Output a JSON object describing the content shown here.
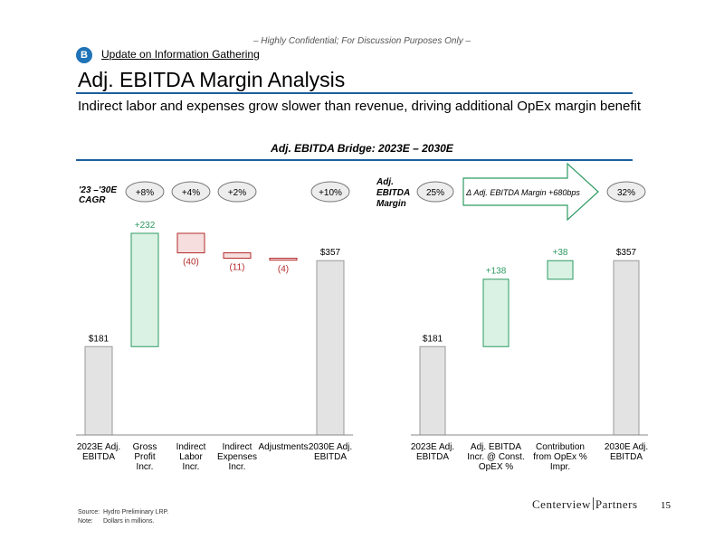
{
  "header": {
    "confidential": "– Highly Confidential; For Discussion Purposes Only –",
    "badge": "B",
    "section": "Update on Information Gathering",
    "title": "Adj. EBITDA Margin Analysis",
    "subtitle": "Indirect labor and expenses grow slower than revenue, driving additional OpEx margin benefit",
    "bridge_title": "Adj. EBITDA Bridge: 2023E – 2030E"
  },
  "colors": {
    "accent_blue": "#1f5f9e",
    "badge_blue": "#1f73b7",
    "positive_green": "#2e9a62",
    "positive_fill": "#d9f2e4",
    "negative_red": "#b22a2a",
    "negative_fill": "#f6dede",
    "total_fill": "#e3e3e3"
  },
  "chart_data": [
    {
      "type": "bar",
      "subtype": "waterfall",
      "cagr_label": "'23 –'30E CAGR",
      "categories": [
        "2023E Adj. EBITDA",
        "Gross Profit Incr.",
        "Indirect Labor Incr.",
        "Indirect Expenses Incr.",
        "Adjustments",
        "2030E Adj. EBITDA"
      ],
      "values": [
        181,
        232,
        -40,
        -11,
        -4,
        357
      ],
      "kinds": [
        "total",
        "increase",
        "decrease",
        "decrease",
        "decrease",
        "total"
      ],
      "data_labels": [
        "$181",
        "+232",
        "(40)",
        "(11)",
        "(4)",
        "$357"
      ],
      "cagr_values": [
        "",
        "+8%",
        "+4%",
        "+2%",
        "",
        "+10%"
      ],
      "ylim": [
        0,
        420
      ]
    },
    {
      "type": "bar",
      "subtype": "waterfall",
      "margin_label": "Adj. EBITDA Margin",
      "margin_start": "25%",
      "margin_end": "32%",
      "margin_delta": "Δ Adj. EBITDA Margin +680bps",
      "categories": [
        "2023E Adj. EBITDA",
        "Adj. EBITDA Incr. @ Const. OpEX %",
        "Contribution from OpEx % Impr.",
        "2030E Adj. EBITDA"
      ],
      "values": [
        181,
        138,
        38,
        357
      ],
      "kinds": [
        "total",
        "increase",
        "increase",
        "total"
      ],
      "data_labels": [
        "$181",
        "+138",
        "+38",
        "$357"
      ],
      "ylim": [
        0,
        420
      ]
    }
  ],
  "footer": {
    "source_label": "Source:",
    "source_text": "Hydro Preliminary LRP.",
    "note_label": "Note:",
    "note_text": "Dollars in millions.",
    "logo_left": "Centerview",
    "logo_right": "Partners",
    "logo_text": "Centerview Partners",
    "page_number": "15"
  }
}
